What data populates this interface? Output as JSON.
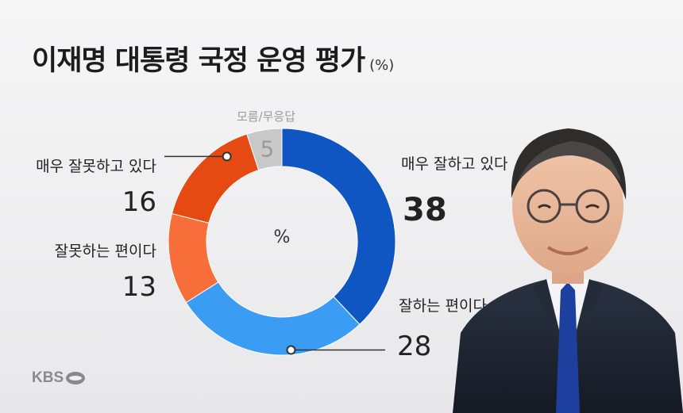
{
  "header": {
    "title": "이재명 대통령 국정 운영 평가",
    "unit": "(%)"
  },
  "logo": {
    "text": "KBS"
  },
  "chart_data": {
    "type": "pie",
    "center_label": "%",
    "slices": [
      {
        "name": "매우 잘하고 있다",
        "value": 38,
        "color": "#0f56c2"
      },
      {
        "name": "잘하는 편이다",
        "value": 28,
        "color": "#3a9cf2"
      },
      {
        "name": "잘못하는 편이다",
        "value": 13,
        "color": "#f86e3a"
      },
      {
        "name": "매우 잘못하고 있다",
        "value": 16,
        "color": "#e44a12"
      },
      {
        "name": "모름/무응답",
        "value": 5,
        "color": "#c9c9c9"
      }
    ]
  }
}
